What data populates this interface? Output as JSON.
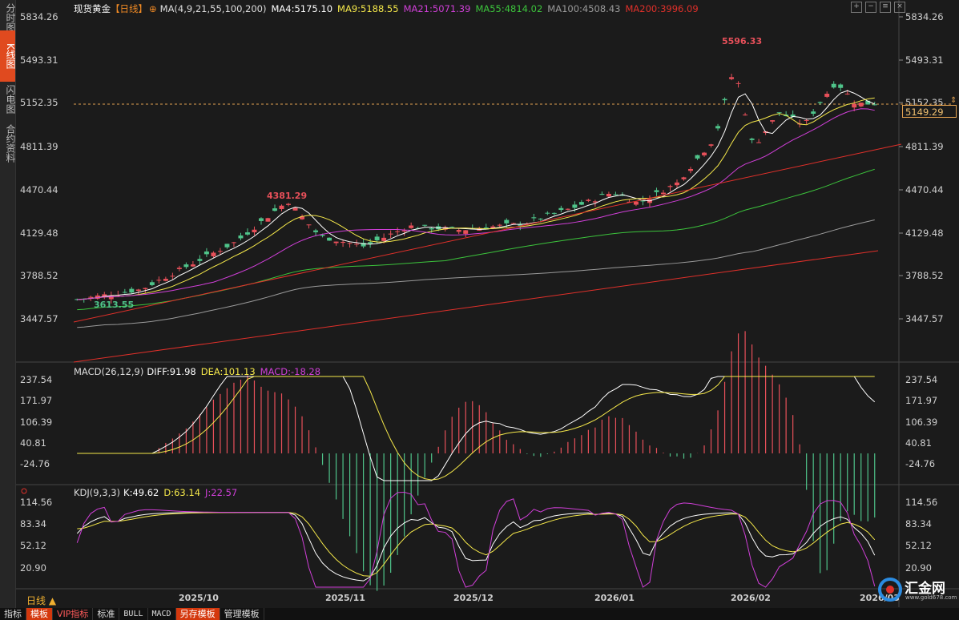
{
  "left_tabs": [
    {
      "label": "分时图",
      "active": false
    },
    {
      "label": "K线图",
      "active": true
    },
    {
      "label": "闪电图",
      "active": false
    },
    {
      "label": "合约资料",
      "active": false
    }
  ],
  "header": {
    "instrument": "现货黄金",
    "period": "【日线】",
    "ma_params": "MA(4,9,21,55,100,200)",
    "ma4": "MA4:5175.10",
    "ma9": "MA9:5188.55",
    "ma21": "MA21:5071.39",
    "ma55": "MA55:4814.02",
    "ma100": "MA100:4508.43",
    "ma200": "MA200:3996.09"
  },
  "colors": {
    "ma4": "#ffffff",
    "ma9": "#f5e84a",
    "ma21": "#d03fd8",
    "ma55": "#3cc43c",
    "ma100": "#9a9a9a",
    "ma200": "#e0302a",
    "trend": "#e0302a",
    "up": "#e8505a",
    "down": "#4fc48a",
    "accent": "#e04a1f"
  },
  "price_axis": [
    "5834.26",
    "5493.31",
    "5152.35",
    "4811.39",
    "4470.44",
    "4129.48",
    "3788.52",
    "3447.57"
  ],
  "current_price": "5149.29",
  "annotations": {
    "high": "5596.33",
    "mid_high": "4381.29",
    "low": "3613.55"
  },
  "macd": {
    "title": "MACD(26,12,9)",
    "diff": "DIFF:91.98",
    "dea": "DEA:101.13",
    "macd": "MACD:-18.28",
    "axis": [
      "237.54",
      "171.97",
      "106.39",
      "40.81",
      "-24.76"
    ]
  },
  "kdj": {
    "title": "KDJ(9,3,3)",
    "k": "K:49.62",
    "d": "D:63.14",
    "j": "J:22.57",
    "axis": [
      "114.56",
      "83.34",
      "52.12",
      "20.90"
    ]
  },
  "x_axis": [
    "2025/10",
    "2025/11",
    "2025/12",
    "2026/01",
    "2026/02",
    "2026/03"
  ],
  "bottom_bar": [
    "日线 ▲"
  ],
  "bottom_tabs": [
    {
      "label": "指标",
      "style": ""
    },
    {
      "label": "模板",
      "style": "hl"
    },
    {
      "label": "VIP指标",
      "style": "red"
    },
    {
      "label": "标准",
      "style": ""
    },
    {
      "label": "BULL",
      "style": "mono"
    },
    {
      "label": "MACD",
      "style": "mono"
    },
    {
      "label": "另存模板",
      "style": "hl"
    },
    {
      "label": "管理模板",
      "style": ""
    }
  ],
  "logo": {
    "name": "汇金网",
    "url": "www.gold678.com"
  },
  "icons": [
    "zoom-in-icon",
    "zoom-out-icon",
    "settings-icon",
    "close-icon"
  ]
}
